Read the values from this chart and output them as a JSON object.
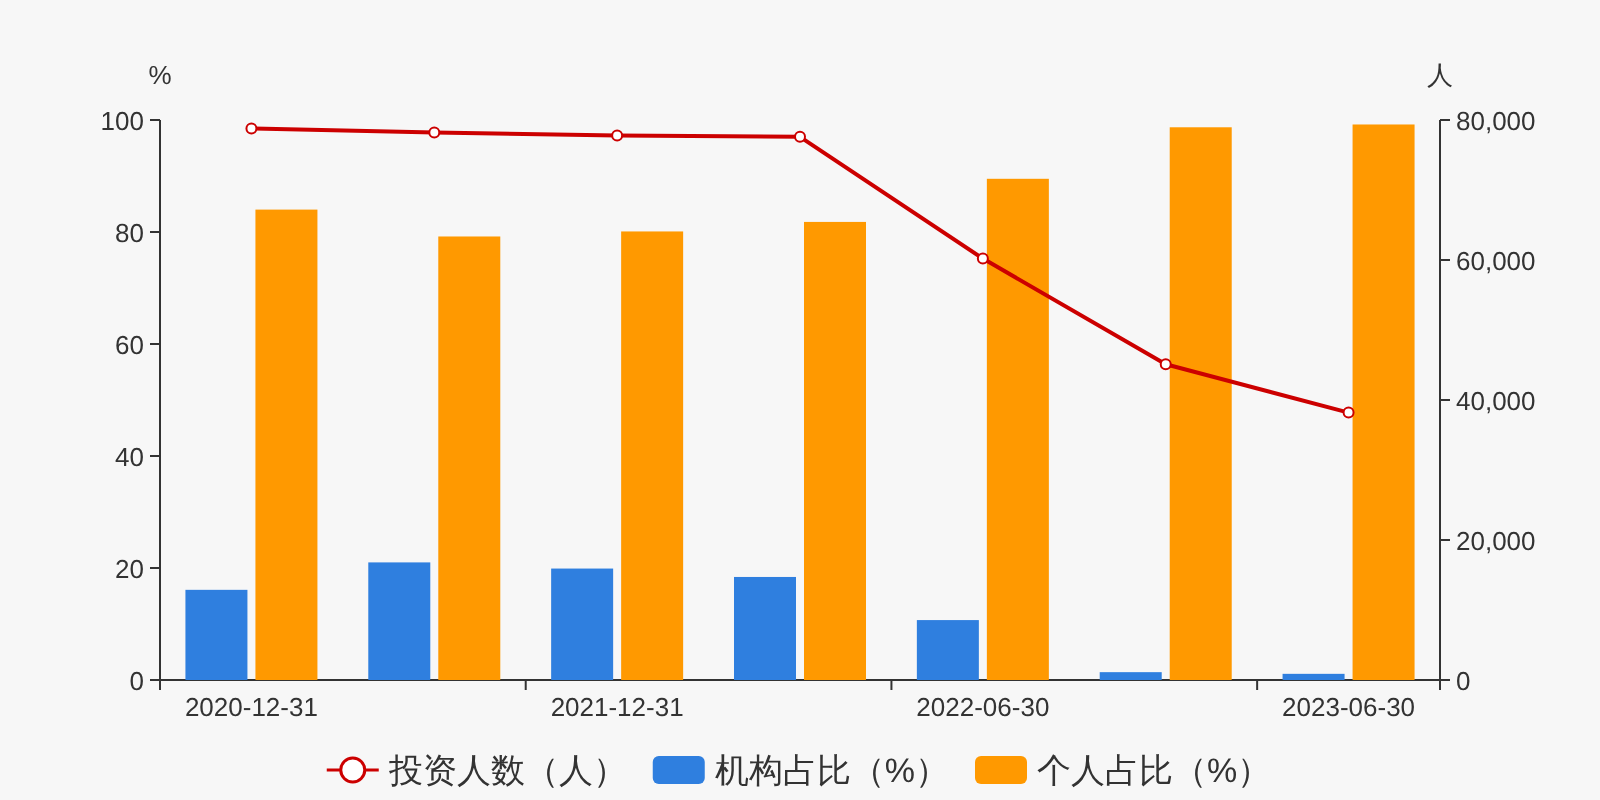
{
  "chart_data": {
    "type": "bar",
    "categories": [
      "2020-12-31",
      null,
      "2021-12-31",
      null,
      "2022-06-30",
      null,
      "2023-06-30"
    ],
    "ylabel": "%",
    "y2label": "人",
    "ylim": [
      0,
      100
    ],
    "yticks": [
      0,
      20,
      40,
      60,
      80,
      100
    ],
    "y2lim": [
      0,
      80000
    ],
    "y2ticks": [
      {
        "value": 0,
        "label": "0"
      },
      {
        "value": 20000,
        "label": "20,000"
      },
      {
        "value": 40000,
        "label": "40,000"
      },
      {
        "value": 60000,
        "label": "60,000"
      },
      {
        "value": 80000,
        "label": "80,000"
      }
    ],
    "grid": false,
    "legend": "bottom",
    "series": [
      {
        "name": "投资人数（人）",
        "type": "line",
        "axis": "y2",
        "color": "#cc0000",
        "marker": "circle",
        "values": [
          78800,
          78200,
          77800,
          77600,
          60200,
          45100,
          38200
        ]
      },
      {
        "name": "机构占比（%）",
        "color": "#2f7fdf",
        "values": [
          16.1,
          21.0,
          19.9,
          18.4,
          10.7,
          1.4,
          1.1
        ]
      },
      {
        "name": "个人占比（%）",
        "color": "#ff9900",
        "values": [
          84.0,
          79.2,
          80.1,
          81.8,
          89.5,
          98.7,
          99.2
        ]
      }
    ]
  }
}
